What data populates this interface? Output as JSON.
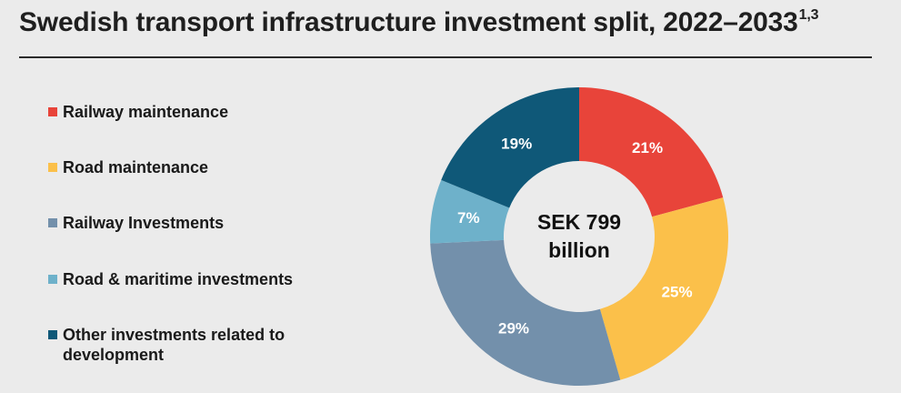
{
  "title": {
    "text": "Swedish transport infrastructure investment split, 2022–2033",
    "superscript": "1,3"
  },
  "chart_data": {
    "type": "pie",
    "variant": "donut",
    "categories": [
      "Railway maintenance",
      "Road maintenance",
      "Railway Investments",
      "Road & maritime investments",
      "Other investments related to development"
    ],
    "values": [
      21,
      25,
      29,
      7,
      19
    ],
    "value_labels": [
      "21%",
      "25%",
      "29%",
      "7%",
      "19%"
    ],
    "unit": "%",
    "colors": [
      "#e8443a",
      "#fbc04a",
      "#7390ab",
      "#6eb1ca",
      "#0f5878"
    ],
    "center_label": {
      "line1": "SEK 799",
      "line2": "billion"
    },
    "legend_position": "left"
  }
}
